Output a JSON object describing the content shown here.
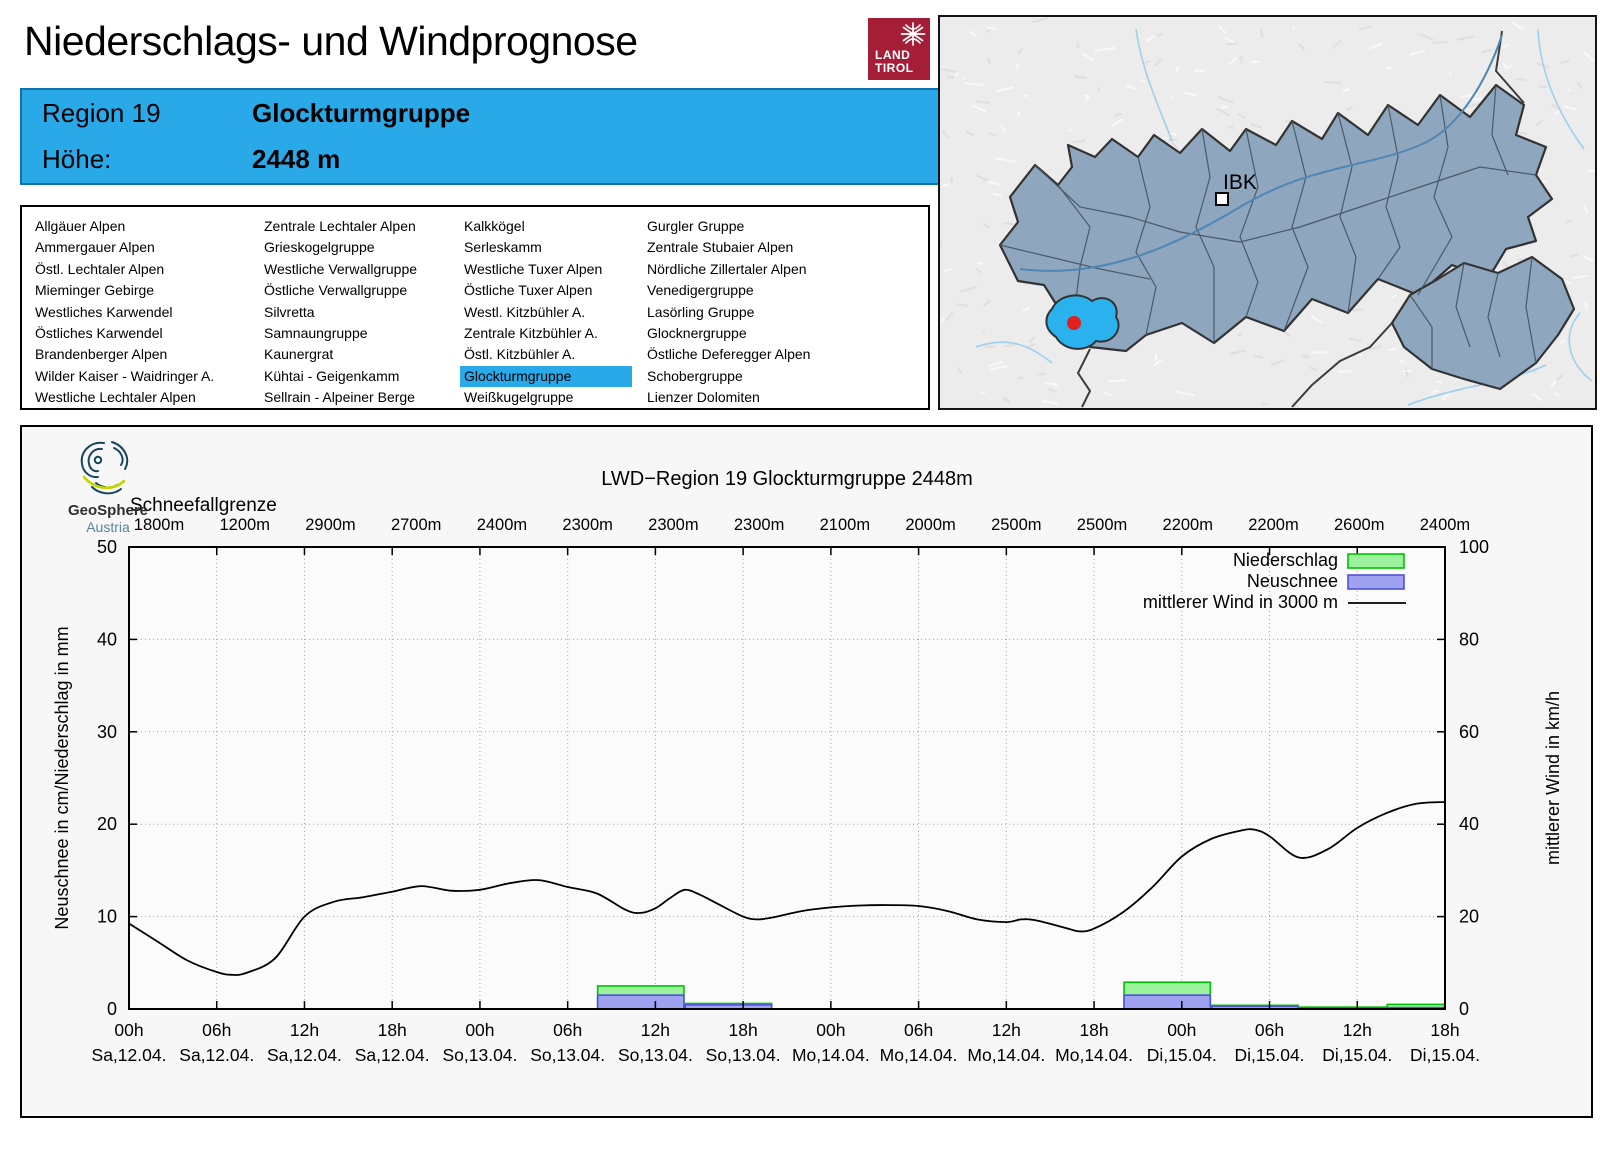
{
  "header": {
    "title": "Niederschlags- und Windprognose",
    "logo_line1": "LAND",
    "logo_line2": "TIROL"
  },
  "info_box": {
    "region_label": "Region 19",
    "region_name": "Glockturmgruppe",
    "altitude_label": "Höhe:",
    "altitude_value": "2448 m"
  },
  "region_list": {
    "selected": "Glockturmgruppe",
    "accent_color": "#29a9e8",
    "columns": [
      [
        "Allgäuer Alpen",
        "Ammergauer Alpen",
        "Östl. Lechtaler Alpen",
        "Mieminger Gebirge",
        "Westliches Karwendel",
        "Östliches Karwendel",
        "Brandenberger Alpen",
        "Wilder Kaiser - Waidringer A.",
        "Westliche Lechtaler Alpen"
      ],
      [
        "Zentrale Lechtaler Alpen",
        "Grieskogelgruppe",
        "Westliche Verwallgruppe",
        "Östliche Verwallgruppe",
        "Silvretta",
        "Samnaungruppe",
        "Kaunergrat",
        "Kühtai - Geigenkamm",
        "Sellrain - Alpeiner Berge"
      ],
      [
        "Kalkkögel",
        "Serleskamm",
        "Westliche Tuxer Alpen",
        "Östliche Tuxer Alpen",
        "Westl. Kitzbühler A.",
        "Zentrale Kitzbühler A.",
        "Östl. Kitzbühler A.",
        "Glockturmgruppe",
        "Weißkugelgruppe"
      ],
      [
        "Gurgler Gruppe",
        "Zentrale Stubaier Alpen",
        "Nördliche Zillertaler Alpen",
        "Venedigergruppe",
        "Lasörling Gruppe",
        "Glocknergruppe",
        "Östliche Deferegger Alpen",
        "Schobergruppe",
        "Lienzer Dolomiten"
      ]
    ]
  },
  "map": {
    "city_label": "IBK",
    "selected_region_color": "#2ab2ee",
    "region_fill": "#8ea6be",
    "marker_color": "#e01f1f"
  },
  "geosphere_logo": {
    "line1": "GeoSphere",
    "line2": "Austria"
  },
  "chart_data": {
    "type": "bar",
    "title": "LWD−Region 19 Glockturmgruppe 2448m",
    "snowline": {
      "label": "Schneefallgrenze",
      "values": [
        "1800m",
        "1200m",
        "2900m",
        "2700m",
        "2400m",
        "2300m",
        "2300m",
        "2300m",
        "2100m",
        "2000m",
        "2500m",
        "2500m",
        "2200m",
        "2200m",
        "2600m",
        "2400m"
      ]
    },
    "x_axis": {
      "hours_total": 90,
      "tick_step_hours": 6,
      "tick_labels": [
        "00h",
        "06h",
        "12h",
        "18h",
        "00h",
        "06h",
        "12h",
        "18h",
        "00h",
        "06h",
        "12h",
        "18h",
        "00h",
        "06h",
        "12h",
        "18h"
      ],
      "tick_dates": [
        "Sa,12.04.",
        "Sa,12.04.",
        "Sa,12.04.",
        "Sa,12.04.",
        "So,13.04.",
        "So,13.04.",
        "So,13.04.",
        "So,13.04.",
        "Mo,14.04.",
        "Mo,14.04.",
        "Mo,14.04.",
        "Mo,14.04.",
        "Di,15.04.",
        "Di,15.04.",
        "Di,15.04.",
        "Di,15.04."
      ]
    },
    "y_left": {
      "label": "Neuschnee in cm/Niederschlag in mm",
      "min": 0,
      "max": 50,
      "ticks": [
        0,
        10,
        20,
        30,
        40,
        50
      ]
    },
    "y_right": {
      "label": "mittlerer Wind in km/h",
      "min": 0,
      "max": 100,
      "ticks": [
        0,
        20,
        40,
        60,
        80,
        100
      ]
    },
    "grid": true,
    "legend_position": "top-right",
    "legend": [
      {
        "label": "Niederschlag",
        "type": "box",
        "fill": "#9cf29c",
        "stroke": "#00c400"
      },
      {
        "label": "Neuschnee",
        "type": "box",
        "fill": "#9ea2f0",
        "stroke": "#4f52d9"
      },
      {
        "label": "mittlerer Wind in 3000 m",
        "type": "line",
        "stroke": "#000000"
      }
    ],
    "bars": [
      {
        "from_hour": 32,
        "to_hour": 38,
        "niederschlag_mm": 2.5,
        "neuschnee_cm": 1.5
      },
      {
        "from_hour": 38,
        "to_hour": 44,
        "niederschlag_mm": 0.6,
        "neuschnee_cm": 0.45
      },
      {
        "from_hour": 68,
        "to_hour": 74,
        "niederschlag_mm": 2.9,
        "neuschnee_cm": 1.5
      },
      {
        "from_hour": 74,
        "to_hour": 80,
        "niederschlag_mm": 0.4,
        "neuschnee_cm": 0.3
      },
      {
        "from_hour": 80,
        "to_hour": 86,
        "niederschlag_mm": 0.2,
        "neuschnee_cm": 0.1
      },
      {
        "from_hour": 86,
        "to_hour": 90,
        "niederschlag_mm": 0.5,
        "neuschnee_cm": 0.15
      }
    ],
    "wind_series": {
      "name": "mittlerer Wind in 3000 m",
      "unit": "km/h",
      "hours": [
        0,
        2,
        4,
        6,
        7,
        8,
        10,
        12,
        14,
        16,
        18,
        20,
        22,
        24,
        26,
        28,
        30,
        32,
        34,
        35,
        36,
        37,
        38,
        39,
        40,
        42,
        43,
        44,
        46,
        48,
        50,
        52,
        54,
        56,
        58,
        60,
        61,
        62,
        64,
        65,
        66,
        68,
        70,
        72,
        74,
        76,
        77,
        78,
        80,
        82,
        84,
        86,
        88,
        90
      ],
      "values_kmh": [
        18.5,
        14.5,
        10.5,
        8.0,
        7.4,
        7.8,
        11.0,
        20.0,
        23.2,
        24.2,
        25.4,
        26.6,
        25.6,
        25.8,
        27.2,
        27.9,
        26.4,
        25.0,
        21.4,
        20.8,
        21.8,
        24.0,
        25.8,
        24.8,
        23.2,
        20.0,
        19.4,
        19.8,
        21.2,
        22.0,
        22.4,
        22.5,
        22.3,
        21.2,
        19.4,
        18.8,
        19.4,
        19.2,
        17.6,
        16.8,
        17.4,
        21.0,
        26.4,
        33.0,
        36.8,
        38.6,
        38.8,
        37.4,
        32.8,
        34.6,
        39.2,
        42.4,
        44.4,
        44.8
      ]
    }
  }
}
